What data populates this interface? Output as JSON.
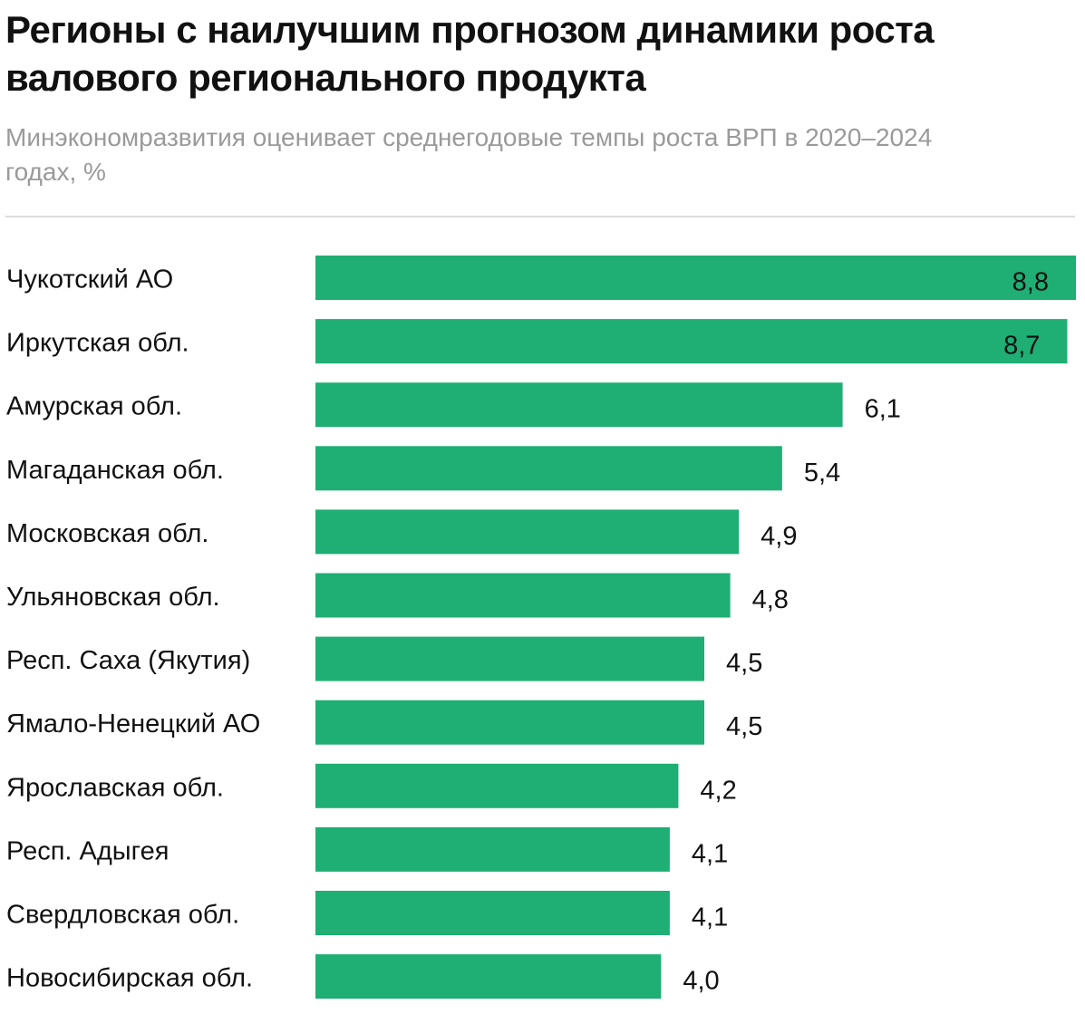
{
  "header": {
    "title": "Регионы с наилучшим прогнозом динамики роста валового регионального продукта",
    "subtitle": "Минэкономразвития оценивает среднегодовые темпы роста ВРП в 2020–2024 годах, %"
  },
  "colors": {
    "bar": "#1fae74",
    "text": "#111111",
    "subtitle": "#9a9a9a",
    "divider": "#dcdcdc"
  },
  "chart_data": {
    "type": "bar",
    "orientation": "horizontal",
    "title": "Регионы с наилучшим прогнозом динамики роста валового регионального продукта",
    "subtitle": "Минэкономразвития оценивает среднегодовые темпы роста ВРП в 2020–2024 годах, %",
    "categories": [
      "Чукотский АО",
      "Иркутская обл.",
      "Амурская обл.",
      "Магаданская обл.",
      "Московская обл.",
      "Ульяновская обл.",
      "Респ. Саха (Якутия)",
      "Ямало-Ненецкий АО",
      "Ярославская обл.",
      "Респ. Адыгея",
      "Свердловская обл.",
      "Новосибирская обл."
    ],
    "values": [
      8.8,
      8.7,
      6.1,
      5.4,
      4.9,
      4.8,
      4.5,
      4.5,
      4.2,
      4.1,
      4.1,
      4.0
    ],
    "value_labels": [
      "8,8",
      "8,7",
      "6,1",
      "5,4",
      "4,9",
      "4,8",
      "4,5",
      "4,5",
      "4,2",
      "4,1",
      "4,1",
      "4,0"
    ],
    "xlabel": "",
    "ylabel": "",
    "grid": false,
    "legend": "none"
  }
}
